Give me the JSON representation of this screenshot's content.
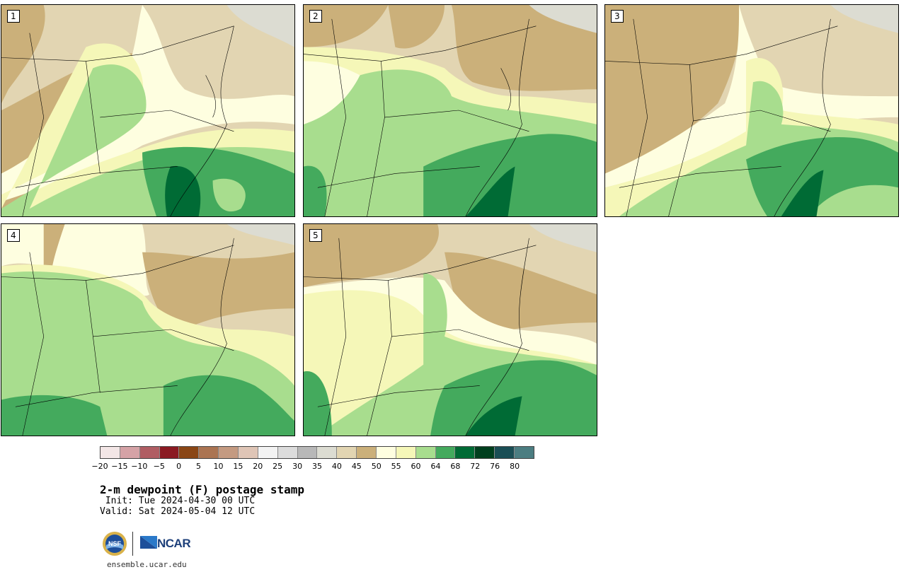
{
  "panels": [
    {
      "label": "1"
    },
    {
      "label": "2"
    },
    {
      "label": "3"
    },
    {
      "label": "4"
    },
    {
      "label": "5"
    }
  ],
  "colorbar": {
    "colors": [
      "#f3e6e6",
      "#d5a2a6",
      "#b05d63",
      "#8b1a22",
      "#8a4615",
      "#ab7452",
      "#c49a81",
      "#dfc5b6",
      "#f3f3f3",
      "#dcdcdc",
      "#b8b8b8",
      "#dcdcd2",
      "#e2d5b2",
      "#cbb07a",
      "#fefee0",
      "#f5f7b8",
      "#a8dd8e",
      "#44aa5d",
      "#006b35",
      "#003f1e",
      "#1a4e55",
      "#4b7d81"
    ],
    "ticks": [
      "−20",
      "−15",
      "−10",
      "−5",
      "0",
      "5",
      "10",
      "15",
      "20",
      "25",
      "30",
      "35",
      "40",
      "45",
      "50",
      "55",
      "60",
      "64",
      "68",
      "72",
      "76",
      "80"
    ]
  },
  "title": "2-m dewpoint (F) postage stamp",
  "init": " Init: Tue 2024-04-30 00 UTC",
  "valid": "Valid: Sat 2024-05-04 12 UTC",
  "logo": {
    "ncar_text": "NCAR",
    "nsf_text": "NSF"
  },
  "site": "ensemble.ucar.edu"
}
